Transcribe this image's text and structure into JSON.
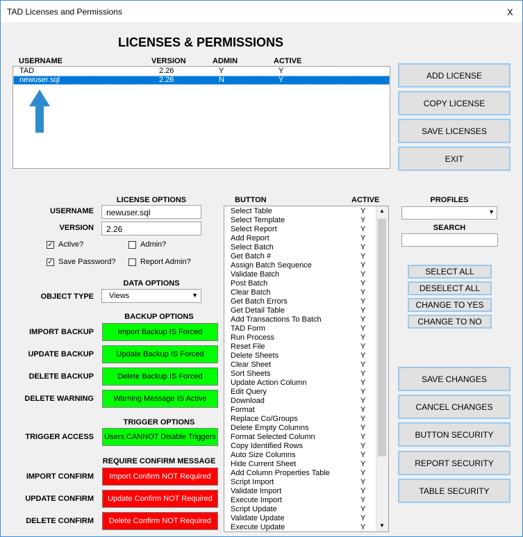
{
  "window": {
    "title": "TAD Licenses and Permissions",
    "close": "X"
  },
  "heading": "LICENSES & PERMISSIONS",
  "license_table": {
    "columns": [
      "USERNAME",
      "VERSION",
      "ADMIN",
      "ACTIVE"
    ],
    "rows": [
      [
        "TAD",
        "2.26",
        "Y",
        "Y"
      ],
      [
        "newuser.sql",
        "2.26",
        "N",
        "Y"
      ]
    ]
  },
  "top_buttons": [
    "ADD LICENSE",
    "COPY LICENSE",
    "SAVE LICENSES",
    "EXIT"
  ],
  "license_options": {
    "title": "LICENSE OPTIONS",
    "username_label": "USERNAME",
    "username": "newuser.sql",
    "version_label": "VERSION",
    "version": "2.26",
    "checkboxes": [
      {
        "label": "Active?",
        "checked": true
      },
      {
        "label": "Admin?",
        "checked": false
      },
      {
        "label": "Save Password?",
        "checked": true
      },
      {
        "label": "Report Admin?",
        "checked": false
      }
    ]
  },
  "data_options": {
    "title": "DATA OPTIONS",
    "object_type_label": "OBJECT TYPE",
    "object_type": "Views"
  },
  "backup_options": {
    "title": "BACKUP OPTIONS",
    "rows": [
      {
        "label": "IMPORT BACKUP",
        "button": "Import Backup IS Forced"
      },
      {
        "label": "UPDATE BACKUP",
        "button": "Update Backup IS Forced"
      },
      {
        "label": "DELETE BACKUP",
        "button": "Delete Backup IS Forced"
      },
      {
        "label": "DELETE WARNING",
        "button": "Warning Message IS Active"
      }
    ]
  },
  "trigger_options": {
    "title": "TRIGGER OPTIONS",
    "label": "TRIGGER ACCESS",
    "button": "Users CANNOT Disable Triggers"
  },
  "confirm_options": {
    "title": "REQUIRE CONFIRM MESSAGE",
    "rows": [
      {
        "label": "IMPORT CONFIRM",
        "button": "Import Confirm NOT Required"
      },
      {
        "label": "UPDATE CONFIRM",
        "button": "Update Confirm NOT Required"
      },
      {
        "label": "DELETE CONFIRM",
        "button": "Delete Confirm NOT Required"
      }
    ]
  },
  "button_list": {
    "columns": [
      "BUTTON",
      "ACTIVE"
    ],
    "rows": [
      [
        "Select Table",
        "Y"
      ],
      [
        "Select Template",
        "Y"
      ],
      [
        "Select Report",
        "Y"
      ],
      [
        "Add Report",
        "Y"
      ],
      [
        "Select Batch",
        "Y"
      ],
      [
        "Get Batch #",
        "Y"
      ],
      [
        "Assign Batch Sequence",
        "Y"
      ],
      [
        "Validate Batch",
        "Y"
      ],
      [
        "Post Batch",
        "Y"
      ],
      [
        "Clear Batch",
        "Y"
      ],
      [
        "Get Batch Errors",
        "Y"
      ],
      [
        "Get Detail Table",
        "Y"
      ],
      [
        "Add Transactions To Batch",
        "Y"
      ],
      [
        "TAD Form",
        "Y"
      ],
      [
        "Run Process",
        "Y"
      ],
      [
        "Reset File",
        "Y"
      ],
      [
        "Delete Sheets",
        "Y"
      ],
      [
        "Clear Sheet",
        "Y"
      ],
      [
        "Sort Sheets",
        "Y"
      ],
      [
        "Update Action Column",
        "Y"
      ],
      [
        "Edit Query",
        "Y"
      ],
      [
        "Download",
        "Y"
      ],
      [
        "Format",
        "Y"
      ],
      [
        "Replace Co/Groups",
        "Y"
      ],
      [
        "Delete Empty Columns",
        "Y"
      ],
      [
        "Format Selected Column",
        "Y"
      ],
      [
        "Copy Identified Rows",
        "Y"
      ],
      [
        "Auto Size Columns",
        "Y"
      ],
      [
        "Hide Current Sheet",
        "Y"
      ],
      [
        "Add Column Properties Table",
        "Y"
      ],
      [
        "Script Import",
        "Y"
      ],
      [
        "Validate Import",
        "Y"
      ],
      [
        "Execute Import",
        "Y"
      ],
      [
        "Script Update",
        "Y"
      ],
      [
        "Validate Update",
        "Y"
      ],
      [
        "Execute Update",
        "Y"
      ]
    ]
  },
  "profiles": {
    "label": "PROFILES",
    "search_label": "SEARCH"
  },
  "selection_buttons": [
    "SELECT ALL",
    "DESELECT ALL",
    "CHANGE TO YES",
    "CHANGE TO NO"
  ],
  "bottom_buttons": [
    "SAVE CHANGES",
    "CANCEL CHANGES",
    "BUTTON SECURITY",
    "REPORT SECURITY",
    "TABLE SECURITY"
  ]
}
